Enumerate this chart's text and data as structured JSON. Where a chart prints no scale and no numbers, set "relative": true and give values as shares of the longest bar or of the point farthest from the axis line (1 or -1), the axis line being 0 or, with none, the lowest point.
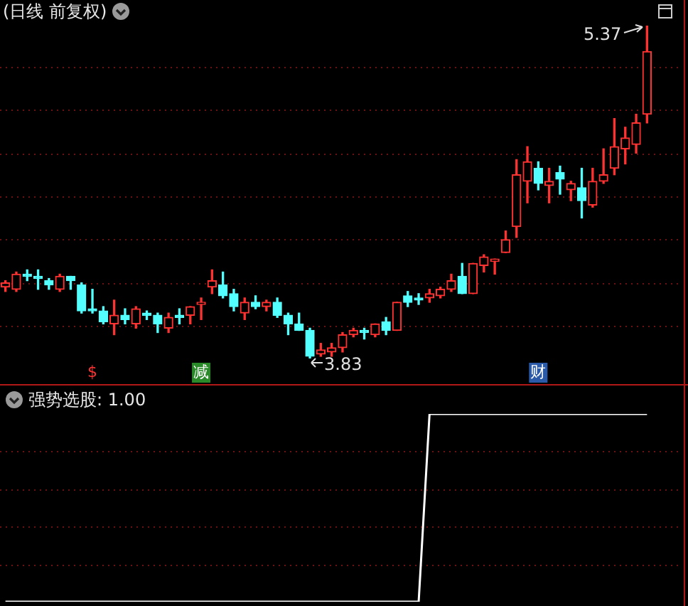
{
  "chart_data": [
    {
      "type": "candlestick",
      "title": "(日线 前复权)",
      "categories": [
        null,
        null,
        null,
        null,
        null,
        null,
        null,
        null,
        null,
        null,
        null,
        null,
        null,
        null,
        null,
        null,
        null,
        null,
        null,
        null,
        null,
        null,
        null,
        null,
        null,
        null,
        null,
        null,
        null,
        null,
        null,
        null,
        null,
        null,
        null,
        null,
        null,
        null,
        null,
        null,
        null,
        null,
        null,
        null,
        null,
        null,
        null,
        null,
        null,
        null,
        null,
        null,
        null,
        null,
        null,
        null,
        null,
        null,
        null,
        null
      ],
      "ohlc": [
        [
          4.16,
          4.19,
          4.14,
          4.18
        ],
        [
          4.15,
          4.23,
          4.14,
          4.22
        ],
        [
          4.22,
          4.24,
          4.19,
          4.21
        ],
        [
          4.21,
          4.24,
          4.15,
          4.2
        ],
        [
          4.19,
          4.2,
          4.15,
          4.17
        ],
        [
          4.15,
          4.22,
          4.14,
          4.21
        ],
        [
          4.21,
          4.21,
          4.15,
          4.19
        ],
        [
          4.17,
          4.18,
          4.04,
          4.05
        ],
        [
          4.06,
          4.15,
          4.04,
          4.05
        ],
        [
          4.05,
          4.07,
          3.99,
          4.0
        ],
        [
          3.99,
          4.1,
          3.94,
          4.03
        ],
        [
          4.03,
          4.06,
          3.99,
          4.01
        ],
        [
          3.99,
          4.07,
          3.97,
          4.06
        ],
        [
          4.04,
          4.05,
          4.01,
          4.03
        ],
        [
          4.03,
          4.04,
          3.95,
          3.99
        ],
        [
          3.97,
          4.04,
          3.95,
          4.02
        ],
        [
          4.03,
          4.06,
          3.99,
          4.02
        ],
        [
          4.03,
          4.07,
          3.99,
          4.07
        ],
        [
          4.08,
          4.11,
          4.01,
          4.09
        ],
        [
          4.16,
          4.24,
          4.13,
          4.19
        ],
        [
          4.17,
          4.23,
          4.11,
          4.12
        ],
        [
          4.13,
          4.15,
          4.05,
          4.07
        ],
        [
          4.04,
          4.11,
          4.01,
          4.09
        ],
        [
          4.09,
          4.12,
          4.06,
          4.07
        ],
        [
          4.07,
          4.1,
          4.05,
          4.09
        ],
        [
          4.09,
          4.11,
          4.02,
          4.03
        ],
        [
          4.03,
          4.04,
          3.94,
          3.99
        ],
        [
          3.99,
          4.04,
          3.96,
          3.96
        ],
        [
          3.96,
          3.97,
          3.83,
          3.84
        ],
        [
          3.85,
          3.9,
          3.84,
          3.87
        ],
        [
          3.86,
          3.9,
          3.84,
          3.88
        ],
        [
          3.88,
          3.95,
          3.86,
          3.94
        ],
        [
          3.94,
          3.97,
          3.93,
          3.96
        ],
        [
          3.96,
          3.97,
          3.92,
          3.95
        ],
        [
          3.94,
          3.99,
          3.93,
          3.99
        ],
        [
          4.0,
          4.02,
          3.94,
          3.96
        ],
        [
          3.96,
          4.09,
          3.96,
          4.09
        ],
        [
          4.12,
          4.14,
          4.07,
          4.09
        ],
        [
          4.11,
          4.13,
          4.08,
          4.1
        ],
        [
          4.11,
          4.15,
          4.09,
          4.13
        ],
        [
          4.12,
          4.16,
          4.11,
          4.15
        ],
        [
          4.15,
          4.22,
          4.14,
          4.19
        ],
        [
          4.21,
          4.27,
          4.13,
          4.13
        ],
        [
          4.13,
          4.27,
          4.13,
          4.27
        ],
        [
          4.26,
          4.31,
          4.23,
          4.3
        ],
        [
          4.28,
          4.29,
          4.22,
          4.29
        ],
        [
          4.32,
          4.42,
          4.32,
          4.38
        ],
        [
          4.44,
          4.75,
          4.39,
          4.68
        ],
        [
          4.65,
          4.81,
          4.55,
          4.74
        ],
        [
          4.71,
          4.74,
          4.61,
          4.64
        ],
        [
          4.63,
          4.71,
          4.55,
          4.65
        ],
        [
          4.69,
          4.72,
          4.59,
          4.66
        ],
        [
          4.61,
          4.65,
          4.56,
          4.64
        ],
        [
          4.62,
          4.71,
          4.48,
          4.56
        ],
        [
          4.54,
          4.71,
          4.53,
          4.65
        ],
        [
          4.65,
          4.8,
          4.64,
          4.68
        ],
        [
          4.71,
          4.94,
          4.68,
          4.81
        ],
        [
          4.8,
          4.9,
          4.73,
          4.85
        ],
        [
          4.82,
          4.96,
          4.78,
          4.92
        ],
        [
          4.96,
          5.37,
          4.92,
          5.25
        ]
      ],
      "colors": [
        "#ff3232",
        "#ff3232",
        "#54ffff",
        "#54ffff",
        "#54ffff",
        "#ff3232",
        "#54ffff",
        "#54ffff",
        "#54ffff",
        "#54ffff",
        "#ff3232",
        "#54ffff",
        "#ff3232",
        "#54ffff",
        "#54ffff",
        "#ff3232",
        "#54ffff",
        "#ff3232",
        "#ff3232",
        "#ff3232",
        "#54ffff",
        "#54ffff",
        "#ff3232",
        "#54ffff",
        "#ff3232",
        "#54ffff",
        "#54ffff",
        "#54ffff",
        "#54ffff",
        "#ff3232",
        "#ff3232",
        "#ff3232",
        "#ff3232",
        "#54ffff",
        "#ff3232",
        "#54ffff",
        "#ff3232",
        "#54ffff",
        "#54ffff",
        "#ff3232",
        "#ff3232",
        "#ff3232",
        "#54ffff",
        "#ff3232",
        "#ff3232",
        "#ff3232",
        "#ff3232",
        "#ff3232",
        "#ff3232",
        "#54ffff",
        "#ff3232",
        "#54ffff",
        "#ff3232",
        "#54ffff",
        "#ff3232",
        "#ff3232",
        "#ff3232",
        "#ff3232",
        "#ff3232",
        "#ff3232"
      ],
      "annotations": [
        "5.37",
        "3.83",
        "$",
        "减",
        "财"
      ],
      "yticks": [
        {
          "value": 3.98,
          "label": null
        },
        {
          "value": 4.18,
          "label": null
        },
        {
          "value": 4.38,
          "label": null
        },
        {
          "value": 4.58,
          "label": null
        },
        {
          "value": 4.78,
          "label": null
        },
        {
          "value": 4.98,
          "label": null
        },
        {
          "value": 5.18,
          "label": null
        }
      ],
      "grid": true,
      "tick_labels": false
    },
    {
      "type": "line",
      "title": "强势选股: 1.00",
      "categories": [
        null,
        null,
        null,
        null,
        null,
        null,
        null,
        null,
        null,
        null,
        null,
        null,
        null,
        null,
        null,
        null,
        null,
        null,
        null,
        null,
        null,
        null,
        null,
        null,
        null,
        null,
        null,
        null,
        null,
        null,
        null,
        null,
        null,
        null,
        null,
        null,
        null,
        null,
        null,
        null,
        null,
        null,
        null,
        null,
        null,
        null,
        null,
        null,
        null,
        null,
        null,
        null,
        null,
        null,
        null,
        null,
        null,
        null,
        null,
        null
      ],
      "values": [
        0,
        0,
        0,
        0,
        0,
        0,
        0,
        0,
        0,
        0,
        0,
        0,
        0,
        0,
        0,
        0,
        0,
        0,
        0,
        0,
        0,
        0,
        0,
        0,
        0,
        0,
        0,
        0,
        0,
        0,
        0,
        0,
        0,
        0,
        0,
        0,
        0,
        0,
        0,
        1,
        1,
        1,
        1,
        1,
        1,
        1,
        1,
        1,
        1,
        1,
        1,
        1,
        1,
        1,
        1,
        1,
        1,
        1,
        1,
        1
      ],
      "color": "#ffffff",
      "relative": true,
      "ref_lines": [
        {
          "axis": "y",
          "value": 0.2,
          "color": "#6a1010",
          "line_style": "dotted"
        },
        {
          "axis": "y",
          "value": 0.4,
          "color": "#6a1010",
          "line_style": "dotted"
        },
        {
          "axis": "y",
          "value": 0.6,
          "color": "#6a1010",
          "line_style": "dotted"
        },
        {
          "axis": "y",
          "value": 0.8,
          "color": "#6a1010",
          "line_style": "dotted"
        }
      ]
    }
  ]
}
